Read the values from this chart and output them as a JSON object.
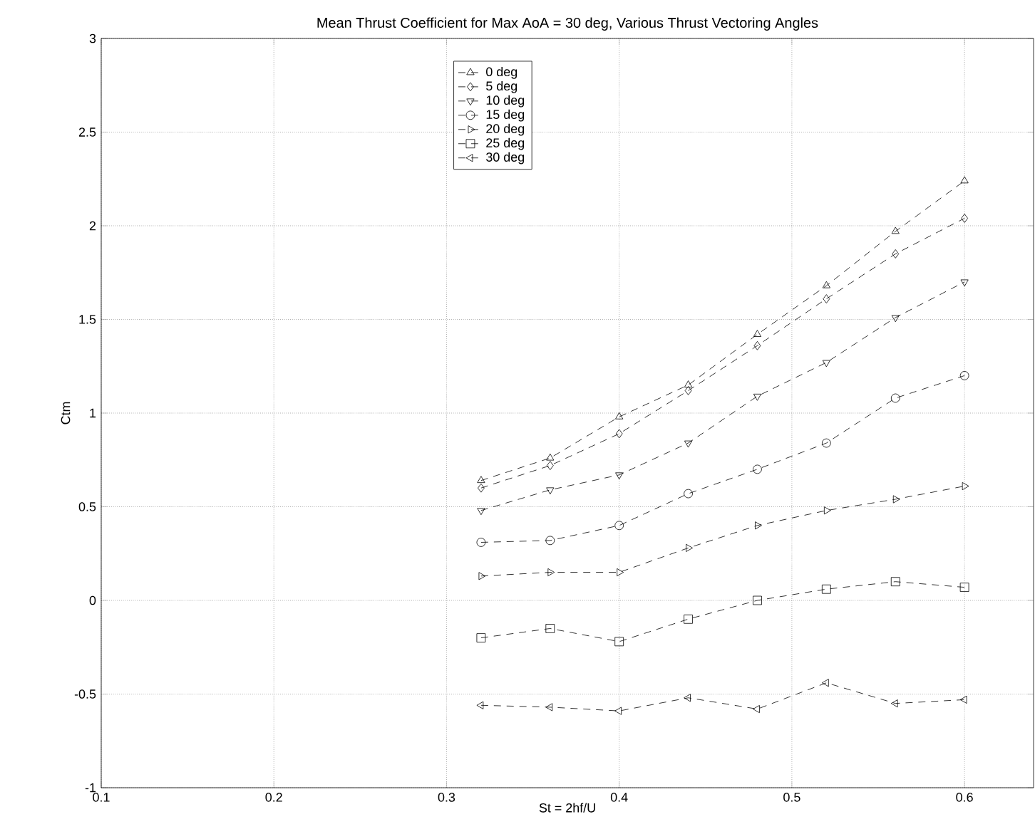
{
  "chart_data": {
    "type": "line",
    "title": "Mean Thrust Coefficient for Max AoA = 30 deg, Various Thrust Vectoring Angles",
    "xlabel": "St = 2hf/U",
    "ylabel": "Ctm",
    "x": [
      0.32,
      0.36,
      0.4,
      0.44,
      0.48,
      0.52,
      0.56,
      0.6
    ],
    "series": [
      {
        "name": "0 deg",
        "color": "#000000",
        "marker": "triangle-up",
        "values": [
          0.64,
          0.76,
          0.98,
          1.15,
          1.42,
          1.68,
          1.97,
          2.24
        ]
      },
      {
        "name": "5 deg",
        "color": "#000000",
        "marker": "diamond",
        "values": [
          0.6,
          0.72,
          0.89,
          1.12,
          1.36,
          1.61,
          1.85,
          2.04
        ]
      },
      {
        "name": "10 deg",
        "color": "#000000",
        "marker": "triangle-down",
        "values": [
          0.48,
          0.59,
          0.67,
          0.84,
          1.09,
          1.27,
          1.51,
          1.7
        ]
      },
      {
        "name": "15 deg",
        "color": "#000000",
        "marker": "circle",
        "values": [
          0.31,
          0.32,
          0.4,
          0.57,
          0.7,
          0.84,
          1.08,
          1.2
        ]
      },
      {
        "name": "20 deg",
        "color": "#000000",
        "marker": "triangle-right",
        "values": [
          0.13,
          0.15,
          0.15,
          0.28,
          0.4,
          0.48,
          0.54,
          0.61
        ]
      },
      {
        "name": "25 deg",
        "color": "#000000",
        "marker": "square",
        "values": [
          -0.2,
          -0.15,
          -0.22,
          -0.1,
          0.0,
          0.06,
          0.1,
          0.07
        ]
      },
      {
        "name": "30 deg",
        "color": "#000000",
        "marker": "triangle-left",
        "values": [
          -0.56,
          -0.57,
          -0.59,
          -0.52,
          -0.58,
          -0.44,
          -0.55,
          -0.53
        ]
      }
    ],
    "xlim": [
      0.1,
      0.64
    ],
    "ylim": [
      -1,
      3
    ],
    "xticks": [
      0.1,
      0.2,
      0.3,
      0.4,
      0.5,
      0.6
    ],
    "yticks": [
      -1,
      -0.5,
      0,
      0.5,
      1,
      1.5,
      2,
      2.5,
      3
    ],
    "grid": true,
    "legend": "top",
    "line_style": "dashed"
  }
}
